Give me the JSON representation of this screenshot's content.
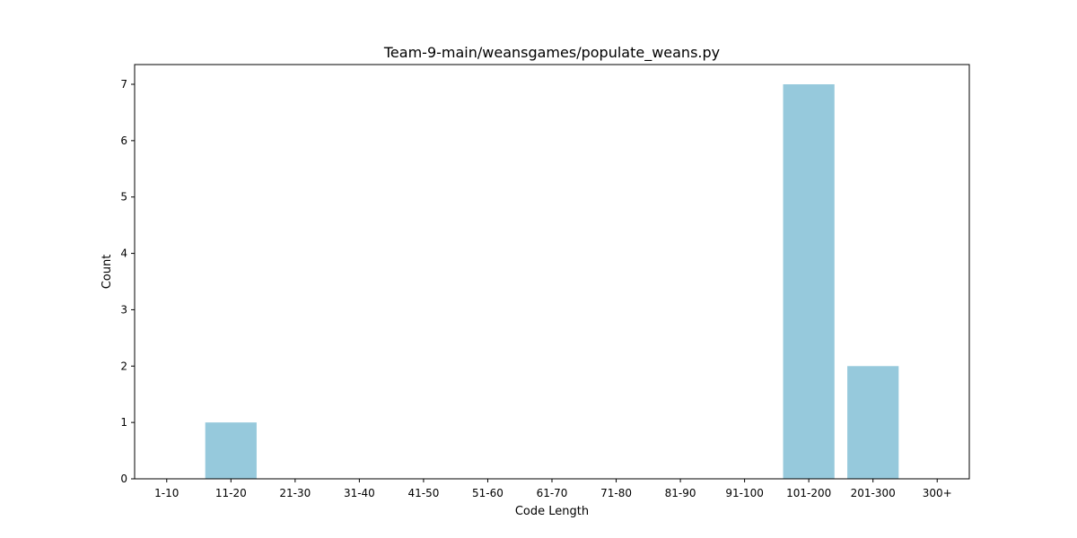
{
  "chart_data": {
    "type": "bar",
    "title": "Team-9-main/weansgames/populate_weans.py",
    "xlabel": "Code Length",
    "ylabel": "Count",
    "categories": [
      "1-10",
      "11-20",
      "21-30",
      "31-40",
      "41-50",
      "51-60",
      "61-70",
      "71-80",
      "81-90",
      "91-100",
      "101-200",
      "201-300",
      "300+"
    ],
    "values": [
      0,
      1,
      0,
      0,
      0,
      0,
      0,
      0,
      0,
      0,
      7,
      2,
      0
    ],
    "ylim": [
      0,
      7.35
    ],
    "yticks": [
      0,
      1,
      2,
      3,
      4,
      5,
      6,
      7
    ],
    "bar_color": "#96c9dc",
    "grid": false,
    "legend": "none"
  }
}
